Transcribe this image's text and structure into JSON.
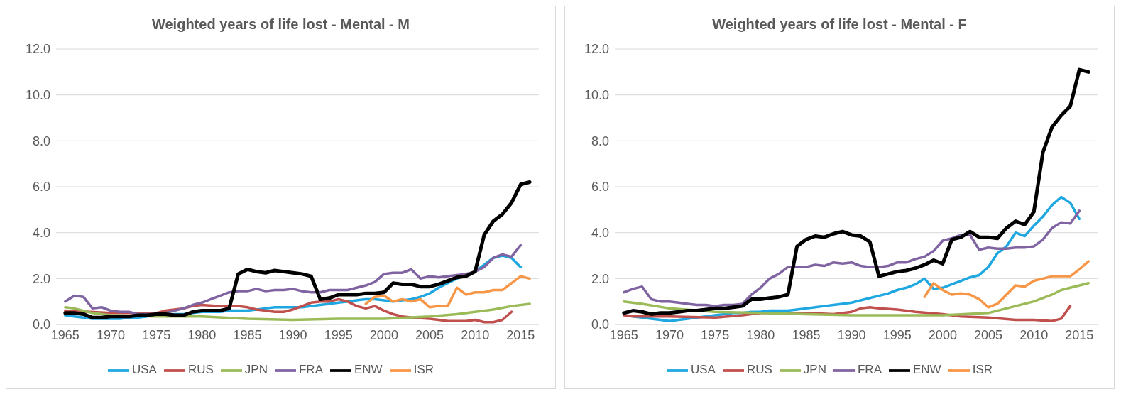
{
  "chart_data": [
    {
      "type": "line",
      "title": "Weighted years of life lost - Mental - M",
      "xlim": [
        1964,
        2017
      ],
      "xticks": [
        1965,
        1970,
        1975,
        1980,
        1985,
        1990,
        1995,
        2000,
        2005,
        2010,
        2015
      ],
      "ylim": [
        0,
        12
      ],
      "yticks": [
        {
          "value": 0,
          "label": "0.0"
        },
        {
          "value": 2,
          "label": "2.0"
        },
        {
          "value": 4,
          "label": "4.0"
        },
        {
          "value": 6,
          "label": "6.0"
        },
        {
          "value": 8,
          "label": "8.0"
        },
        {
          "value": 10,
          "label": "10.0"
        },
        {
          "value": 12,
          "label": "12.0"
        }
      ],
      "grid": "y",
      "legend": "bottom",
      "marker": "none",
      "line_style": "solid",
      "series": [
        {
          "name": "USA",
          "color": "#1ea7e1",
          "x": [
            1965,
            1966,
            1967,
            1968,
            1969,
            1970,
            1971,
            1972,
            1973,
            1974,
            1975,
            1976,
            1977,
            1978,
            1979,
            1980,
            1981,
            1982,
            1983,
            1984,
            1985,
            1986,
            1987,
            1988,
            1989,
            1990,
            1991,
            1992,
            1993,
            1994,
            1995,
            1996,
            1997,
            1998,
            1999,
            2000,
            2001,
            2002,
            2003,
            2004,
            2005,
            2006,
            2007,
            2008,
            2009,
            2010,
            2011,
            2012,
            2013,
            2014,
            2015
          ],
          "values": [
            0.4,
            0.35,
            0.3,
            0.25,
            0.25,
            0.25,
            0.25,
            0.3,
            0.3,
            0.35,
            null,
            0.4,
            0.45,
            0.45,
            0.5,
            0.55,
            0.55,
            0.55,
            0.6,
            0.6,
            0.6,
            0.65,
            0.7,
            0.75,
            0.75,
            0.75,
            0.75,
            0.8,
            0.85,
            0.9,
            0.95,
            1.0,
            1.05,
            1.1,
            1.1,
            1.05,
            1.0,
            1.05,
            1.1,
            1.2,
            1.35,
            1.6,
            1.8,
            2.0,
            2.15,
            2.3,
            2.6,
            2.9,
            3.0,
            2.9,
            2.5
          ]
        },
        {
          "name": "RUS",
          "color": "#c0504d",
          "x": [
            1965,
            1970,
            1975,
            1976,
            1977,
            1978,
            1979,
            1980,
            1982,
            1984,
            1985,
            1986,
            1987,
            1988,
            1989,
            1990,
            1991,
            1992,
            1993,
            1994,
            1995,
            1996,
            1997,
            1998,
            1999,
            2000,
            2001,
            2002,
            2003,
            2005,
            2006,
            2007,
            2009,
            2010,
            2011,
            2012,
            2013,
            2014
          ],
          "values": [
            0.6,
            0.5,
            0.5,
            0.6,
            0.65,
            0.7,
            0.8,
            0.85,
            0.8,
            0.8,
            0.75,
            0.65,
            0.6,
            0.55,
            0.55,
            0.65,
            0.8,
            0.95,
            1.0,
            1.0,
            1.1,
            1.0,
            0.8,
            0.7,
            0.8,
            0.6,
            0.45,
            0.35,
            0.3,
            0.25,
            0.2,
            0.15,
            0.15,
            0.2,
            0.1,
            0.1,
            0.2,
            0.55
          ]
        },
        {
          "name": "JPN",
          "color": "#9bbb59",
          "x": [
            1965,
            1966,
            1967,
            1968,
            1969,
            1970,
            1975,
            1980,
            1985,
            1990,
            1995,
            2000,
            2005,
            2008,
            2010,
            2012,
            2014,
            2016
          ],
          "values": [
            0.75,
            0.7,
            0.6,
            0.5,
            0.45,
            0.4,
            0.35,
            0.35,
            0.25,
            0.2,
            0.25,
            0.25,
            0.35,
            0.45,
            0.55,
            0.65,
            0.8,
            0.9
          ]
        },
        {
          "name": "FRA",
          "color": "#8064a2",
          "x": [
            1965,
            1966,
            1967,
            1968,
            1969,
            1970,
            1971,
            1972,
            1973,
            1974,
            1975,
            1976,
            1977,
            1978,
            1979,
            1980,
            1981,
            1982,
            1983,
            1984,
            1985,
            1986,
            1987,
            1988,
            1989,
            1990,
            1991,
            1992,
            1993,
            1994,
            1995,
            1996,
            1997,
            1998,
            1999,
            2000,
            2001,
            2002,
            2003,
            2004,
            2005,
            2006,
            2007,
            2008,
            2009,
            2010,
            2011,
            2012,
            2013,
            2014,
            2015
          ],
          "values": [
            1.0,
            1.25,
            1.2,
            0.7,
            0.75,
            0.6,
            0.55,
            0.55,
            0.45,
            0.45,
            0.45,
            0.5,
            0.6,
            0.7,
            0.85,
            0.95,
            1.1,
            1.25,
            1.4,
            1.45,
            1.45,
            1.55,
            1.45,
            1.5,
            1.5,
            1.55,
            1.45,
            1.4,
            1.4,
            1.5,
            1.5,
            1.5,
            1.6,
            1.7,
            1.85,
            2.2,
            2.25,
            2.25,
            2.4,
            2.0,
            2.1,
            2.05,
            2.1,
            2.15,
            2.2,
            2.3,
            2.5,
            2.9,
            3.05,
            2.95,
            3.45
          ]
        },
        {
          "name": "ENW",
          "color": "#000000",
          "x": [
            1965,
            1966,
            1967,
            1968,
            1969,
            1970,
            1971,
            1972,
            1973,
            1974,
            1975,
            1976,
            1977,
            1978,
            1979,
            1980,
            1981,
            1982,
            1983,
            1984,
            1985,
            1986,
            1987,
            1988,
            1989,
            1990,
            1991,
            1992,
            1993,
            1994,
            1995,
            1996,
            1997,
            1998,
            1999,
            2000,
            2001,
            2002,
            2003,
            2004,
            2005,
            2006,
            2007,
            2008,
            2009,
            2010,
            2011,
            2012,
            2013,
            2014,
            2015,
            2016
          ],
          "values": [
            0.5,
            0.5,
            0.45,
            0.3,
            0.3,
            0.35,
            0.35,
            0.35,
            0.4,
            0.4,
            0.45,
            0.45,
            0.4,
            0.4,
            0.55,
            0.6,
            0.6,
            0.6,
            0.7,
            2.2,
            2.4,
            2.3,
            2.25,
            2.35,
            2.3,
            2.25,
            2.2,
            2.1,
            1.1,
            1.15,
            1.3,
            1.3,
            1.3,
            1.35,
            1.35,
            1.4,
            1.8,
            1.75,
            1.75,
            1.65,
            1.65,
            1.75,
            1.9,
            2.05,
            2.1,
            2.3,
            3.9,
            4.5,
            4.8,
            5.3,
            6.1,
            6.2
          ]
        },
        {
          "name": "ISR",
          "color": "#f79646",
          "x": [
            1998,
            1999,
            2000,
            2001,
            2002,
            2003,
            2004,
            2005,
            2006,
            2007,
            2008,
            2009,
            2010,
            2011,
            2012,
            2013,
            2014,
            2015,
            2016
          ],
          "values": [
            0.9,
            1.2,
            1.25,
            1.0,
            1.1,
            1.0,
            1.1,
            0.75,
            0.8,
            0.8,
            1.6,
            1.3,
            1.4,
            1.4,
            1.5,
            1.5,
            1.8,
            2.1,
            2.0
          ]
        }
      ]
    },
    {
      "type": "line",
      "title": "Weighted years of life lost - Mental - F",
      "xlim": [
        1964,
        2017
      ],
      "xticks": [
        1965,
        1970,
        1975,
        1980,
        1985,
        1990,
        1995,
        2000,
        2005,
        2010,
        2015
      ],
      "ylim": [
        0,
        12
      ],
      "yticks": [
        {
          "value": 0,
          "label": "0.0"
        },
        {
          "value": 2,
          "label": "2.0"
        },
        {
          "value": 4,
          "label": "4.0"
        },
        {
          "value": 6,
          "label": "6.0"
        },
        {
          "value": 8,
          "label": "8.0"
        },
        {
          "value": 10,
          "label": "10.0"
        },
        {
          "value": 12,
          "label": "12.0"
        }
      ],
      "grid": "y",
      "legend": "bottom",
      "marker": "none",
      "line_style": "solid",
      "series": [
        {
          "name": "USA",
          "color": "#1ea7e1",
          "x": [
            1966,
            1967,
            1968,
            1969,
            1970,
            1971,
            1972,
            1973,
            1974,
            1975,
            1976,
            1977,
            1978,
            1979,
            1980,
            1981,
            1982,
            1983,
            1984,
            1985,
            1986,
            1987,
            1988,
            1989,
            1990,
            1991,
            1992,
            1993,
            1994,
            1995,
            1996,
            1997,
            1998,
            1999,
            2000,
            2001,
            2002,
            2003,
            2004,
            2005,
            2006,
            2007,
            2008,
            2009,
            2010,
            2011,
            2012,
            2013,
            2014,
            2015
          ],
          "values": [
            0.35,
            0.3,
            0.25,
            0.2,
            0.15,
            0.2,
            0.25,
            0.3,
            0.35,
            0.4,
            0.45,
            0.5,
            0.5,
            0.55,
            0.55,
            0.6,
            0.6,
            0.6,
            0.65,
            0.7,
            0.75,
            0.8,
            0.85,
            0.9,
            0.95,
            1.05,
            1.15,
            1.25,
            1.35,
            1.5,
            1.6,
            1.75,
            2.0,
            1.55,
            1.6,
            1.75,
            1.9,
            2.05,
            2.15,
            2.5,
            3.1,
            3.4,
            4.0,
            3.85,
            4.3,
            4.7,
            5.2,
            5.55,
            5.3,
            4.6
          ]
        },
        {
          "name": "RUS",
          "color": "#c0504d",
          "x": [
            1965,
            1966,
            1970,
            1975,
            1978,
            1980,
            1985,
            1988,
            1990,
            1991,
            1992,
            1993,
            1995,
            1997,
            2000,
            2002,
            2005,
            2008,
            2010,
            2012,
            2013,
            2014
          ],
          "values": [
            0.4,
            0.35,
            0.35,
            0.3,
            0.4,
            0.5,
            0.5,
            0.45,
            0.55,
            0.7,
            0.75,
            0.7,
            0.65,
            0.55,
            0.45,
            0.35,
            0.3,
            0.2,
            0.2,
            0.15,
            0.25,
            0.8
          ]
        },
        {
          "name": "JPN",
          "color": "#9bbb59",
          "x": [
            1965,
            1967,
            1970,
            1975,
            1980,
            1985,
            1990,
            1995,
            2000,
            2005,
            2008,
            2010,
            2012,
            2013,
            2014,
            2016
          ],
          "values": [
            1.0,
            0.9,
            0.7,
            0.55,
            0.5,
            0.45,
            0.4,
            0.4,
            0.4,
            0.5,
            0.8,
            1.0,
            1.3,
            1.5,
            1.6,
            1.8
          ]
        },
        {
          "name": "FRA",
          "color": "#8064a2",
          "x": [
            1965,
            1966,
            1967,
            1968,
            1969,
            1970,
            1971,
            1972,
            1973,
            1974,
            1975,
            1976,
            1977,
            1978,
            1979,
            1980,
            1981,
            1982,
            1983,
            1984,
            1985,
            1986,
            1987,
            1988,
            1989,
            1990,
            1991,
            1992,
            1993,
            1994,
            1995,
            1996,
            1997,
            1998,
            1999,
            2000,
            2001,
            2002,
            2003,
            2004,
            2005,
            2006,
            2007,
            2008,
            2009,
            2010,
            2011,
            2012,
            2013,
            2014,
            2015
          ],
          "values": [
            1.4,
            1.55,
            1.65,
            1.1,
            1.0,
            1.0,
            0.95,
            0.9,
            0.85,
            0.85,
            0.8,
            0.85,
            0.85,
            0.9,
            1.3,
            1.6,
            2.0,
            2.2,
            2.5,
            2.5,
            2.5,
            2.6,
            2.55,
            2.7,
            2.65,
            2.7,
            2.55,
            2.5,
            2.5,
            2.55,
            2.7,
            2.7,
            2.85,
            2.95,
            3.2,
            3.65,
            3.75,
            3.9,
            3.9,
            3.25,
            3.35,
            3.3,
            3.3,
            3.35,
            3.35,
            3.4,
            3.7,
            4.2,
            4.45,
            4.4,
            4.95
          ]
        },
        {
          "name": "ENW",
          "color": "#000000",
          "x": [
            1965,
            1966,
            1967,
            1968,
            1969,
            1970,
            1971,
            1972,
            1973,
            1974,
            1975,
            1976,
            1977,
            1978,
            1979,
            1980,
            1981,
            1982,
            1983,
            1984,
            1985,
            1986,
            1987,
            1988,
            1989,
            1990,
            1991,
            1992,
            1993,
            1994,
            1995,
            1996,
            1997,
            1998,
            1999,
            2000,
            2001,
            2002,
            2003,
            2004,
            2005,
            2006,
            2007,
            2008,
            2009,
            2010,
            2011,
            2012,
            2013,
            2014,
            2015,
            2016
          ],
          "values": [
            0.5,
            0.6,
            0.55,
            0.45,
            0.5,
            0.5,
            0.55,
            0.6,
            0.6,
            0.65,
            0.7,
            0.7,
            0.75,
            0.8,
            1.1,
            1.1,
            1.15,
            1.2,
            1.3,
            3.4,
            3.7,
            3.85,
            3.8,
            3.95,
            4.05,
            3.9,
            3.85,
            3.6,
            2.1,
            2.2,
            2.3,
            2.35,
            2.45,
            2.6,
            2.8,
            2.65,
            3.7,
            3.8,
            4.05,
            3.8,
            3.8,
            3.75,
            4.2,
            4.5,
            4.35,
            4.9,
            7.5,
            8.6,
            9.1,
            9.5,
            11.1,
            11.0
          ]
        },
        {
          "name": "ISR",
          "color": "#f79646",
          "x": [
            1998,
            1999,
            2000,
            2001,
            2002,
            2003,
            2004,
            2005,
            2006,
            2007,
            2008,
            2009,
            2010,
            2011,
            2012,
            2013,
            2014,
            2015,
            2016
          ],
          "values": [
            1.2,
            1.8,
            1.5,
            1.3,
            1.35,
            1.3,
            1.1,
            0.75,
            0.9,
            1.3,
            1.7,
            1.65,
            1.9,
            2.0,
            2.1,
            2.1,
            2.1,
            2.4,
            2.75
          ]
        }
      ]
    }
  ]
}
